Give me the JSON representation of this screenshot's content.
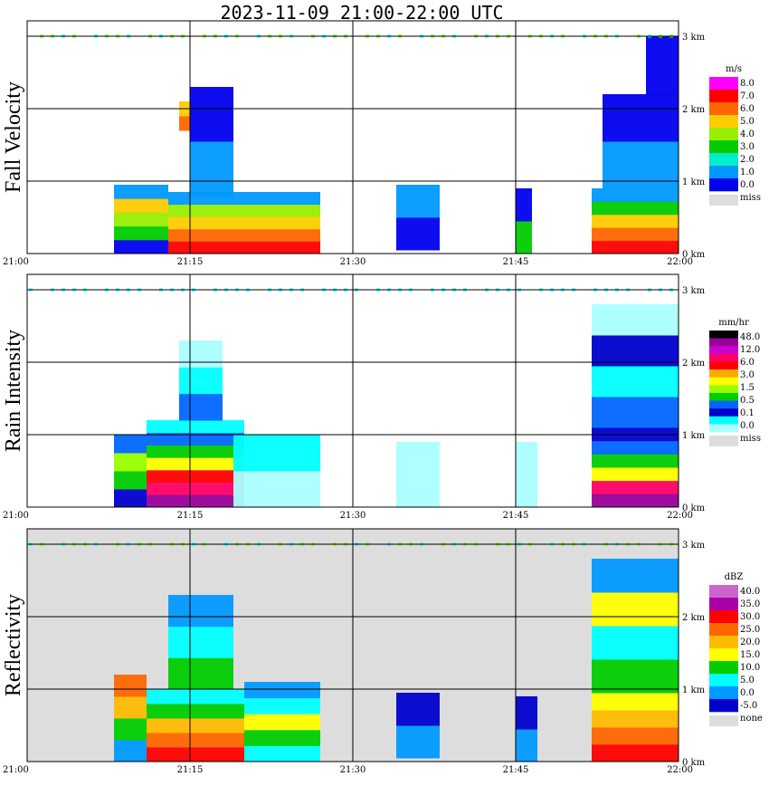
{
  "title": "2023-11-09   21:00-22:00 UTC",
  "chart_data": {
    "type": "heatmap",
    "x_range": [
      "21:00",
      "22:00"
    ],
    "x_ticks": [
      "21:00",
      "21:15",
      "21:30",
      "21:45",
      "22:00"
    ],
    "y_unit": "km",
    "y_range": [
      0,
      3.0
    ],
    "y_ticks": [
      "0 km",
      "1 km",
      "2 km",
      "3 km"
    ],
    "panels": [
      {
        "name": "Fall Velocity",
        "units": "m/s",
        "background": "#ffffff",
        "legend_labels": [
          "8.0",
          "7.0",
          "6.0",
          "5.0",
          "4.0",
          "3.0",
          "2.0",
          "1.0",
          "0.0"
        ],
        "legend_colors": [
          "#ff00ff",
          "#ff0000",
          "#ff6600",
          "#ffcc00",
          "#99ee00",
          "#00cc00",
          "#00eecc",
          "#0099ff",
          "#0000ee"
        ],
        "missing_label": "miss",
        "missing_color": "#dddddd",
        "echoes": [
          {
            "t0": 8,
            "t1": 13,
            "h0": 0,
            "h1": 0.95,
            "bands": [
              "#0000ee",
              "#00cc00",
              "#99ee00",
              "#ffcc00",
              "#0099ff"
            ]
          },
          {
            "t0": 13,
            "t1": 27,
            "h0": 0,
            "h1": 0.85,
            "bands": [
              "#ff0000",
              "#ff6600",
              "#ffcc00",
              "#99ee00",
              "#0099ff"
            ]
          },
          {
            "t0": 15,
            "t1": 19,
            "h0": 0.8,
            "h1": 2.3,
            "bands": [
              "#0099ff",
              "#0000ee"
            ]
          },
          {
            "t0": 14,
            "t1": 15,
            "h0": 1.7,
            "h1": 2.1,
            "bands": [
              "#ff6600",
              "#ffcc00"
            ]
          },
          {
            "t0": 34,
            "t1": 38,
            "h0": 0.05,
            "h1": 0.95,
            "bands": [
              "#0000ee",
              "#0099ff"
            ]
          },
          {
            "t0": 45,
            "t1": 46.5,
            "h0": 0,
            "h1": 0.9,
            "bands": [
              "#00cc00",
              "#0000ee"
            ]
          },
          {
            "t0": 52,
            "t1": 60,
            "h0": 0,
            "h1": 0.9,
            "bands": [
              "#ff0000",
              "#ff6600",
              "#ffcc00",
              "#00cc00",
              "#0099ff"
            ]
          },
          {
            "t0": 53,
            "t1": 60,
            "h0": 0.9,
            "h1": 2.2,
            "bands": [
              "#0099ff",
              "#0000ee"
            ]
          },
          {
            "t0": 57,
            "t1": 60,
            "h0": 2.2,
            "h1": 3.0,
            "bands": [
              "#0000ee"
            ]
          }
        ]
      },
      {
        "name": "Rain Intensity",
        "units": "mm/hr",
        "background": "#ffffff",
        "legend_labels": [
          "48.0",
          "12.0",
          "6.0",
          "3.0",
          "1.5",
          "0.5",
          "0.1",
          "0.0"
        ],
        "legend_colors": [
          "#000000",
          "#990099",
          "#cc00cc",
          "#ff0066",
          "#ff0000",
          "#ffaa00",
          "#ffff00",
          "#99ff00",
          "#00cc00",
          "#0066ff",
          "#0000cc",
          "#00ffff",
          "#aaffff"
        ],
        "missing_label": "miss",
        "missing_color": "#dddddd",
        "echoes": [
          {
            "t0": 8,
            "t1": 11,
            "h0": 0,
            "h1": 1.0,
            "bands": [
              "#0000cc",
              "#00cc00",
              "#99ff00",
              "#0066ff"
            ]
          },
          {
            "t0": 11,
            "t1": 20,
            "h0": 0,
            "h1": 1.2,
            "bands": [
              "#990099",
              "#ff0066",
              "#ff0000",
              "#ffff00",
              "#00cc00",
              "#0066ff",
              "#00ffff"
            ]
          },
          {
            "t0": 14,
            "t1": 18,
            "h0": 1.2,
            "h1": 2.3,
            "bands": [
              "#0066ff",
              "#00ffff",
              "#aaffff"
            ]
          },
          {
            "t0": 19,
            "t1": 27,
            "h0": 0,
            "h1": 1.0,
            "bands": [
              "#aaffff",
              "#00ffff"
            ]
          },
          {
            "t0": 34,
            "t1": 38,
            "h0": 0,
            "h1": 0.9,
            "bands": [
              "#aaffff"
            ]
          },
          {
            "t0": 45,
            "t1": 47,
            "h0": 0,
            "h1": 0.9,
            "bands": [
              "#aaffff"
            ]
          },
          {
            "t0": 52,
            "t1": 60,
            "h0": 0,
            "h1": 1.1,
            "bands": [
              "#990099",
              "#ff0066",
              "#ffff00",
              "#00cc00",
              "#0066ff",
              "#0000cc"
            ]
          },
          {
            "t0": 52,
            "t1": 60,
            "h0": 1.1,
            "h1": 2.8,
            "bands": [
              "#0066ff",
              "#00ffff",
              "#0000cc",
              "#aaffff"
            ]
          }
        ]
      },
      {
        "name": "Reflectivity",
        "units": "dBZ",
        "background": "#dddddd",
        "legend_labels": [
          "40.0",
          "35.0",
          "30.0",
          "25.0",
          "20.0",
          "15.0",
          "10.0",
          "5.0",
          "0.0",
          "-5.0"
        ],
        "legend_colors": [
          "#cc66cc",
          "#aa00aa",
          "#ff0000",
          "#ff6600",
          "#ffbb00",
          "#ffff00",
          "#00cc00",
          "#00ffff",
          "#0099ff",
          "#0000cc"
        ],
        "missing_label": "none",
        "missing_color": "#dddddd",
        "echoes": [
          {
            "t0": 8,
            "t1": 11,
            "h0": 0,
            "h1": 1.2,
            "bands": [
              "#0099ff",
              "#00cc00",
              "#ffbb00",
              "#ff6600"
            ]
          },
          {
            "t0": 11,
            "t1": 20,
            "h0": 0,
            "h1": 1.0,
            "bands": [
              "#ff0000",
              "#ff6600",
              "#ffbb00",
              "#00cc00",
              "#00ffff"
            ]
          },
          {
            "t0": 13,
            "t1": 19,
            "h0": 1.0,
            "h1": 2.3,
            "bands": [
              "#00cc00",
              "#00ffff",
              "#0099ff"
            ]
          },
          {
            "t0": 20,
            "t1": 27,
            "h0": 0,
            "h1": 1.1,
            "bands": [
              "#00ffff",
              "#00cc00",
              "#ffff00",
              "#00ffff",
              "#0099ff"
            ]
          },
          {
            "t0": 34,
            "t1": 38,
            "h0": 0.05,
            "h1": 0.95,
            "bands": [
              "#0099ff",
              "#0000cc"
            ]
          },
          {
            "t0": 45,
            "t1": 47,
            "h0": 0,
            "h1": 0.9,
            "bands": [
              "#0099ff",
              "#0000cc"
            ]
          },
          {
            "t0": 52,
            "t1": 60,
            "h0": 0,
            "h1": 0.95,
            "bands": [
              "#ff0000",
              "#ff6600",
              "#ffbb00",
              "#ffff00"
            ]
          },
          {
            "t0": 52,
            "t1": 60,
            "h0": 0.95,
            "h1": 2.8,
            "bands": [
              "#00cc00",
              "#00ffff",
              "#ffff00",
              "#0099ff"
            ]
          }
        ]
      }
    ]
  }
}
